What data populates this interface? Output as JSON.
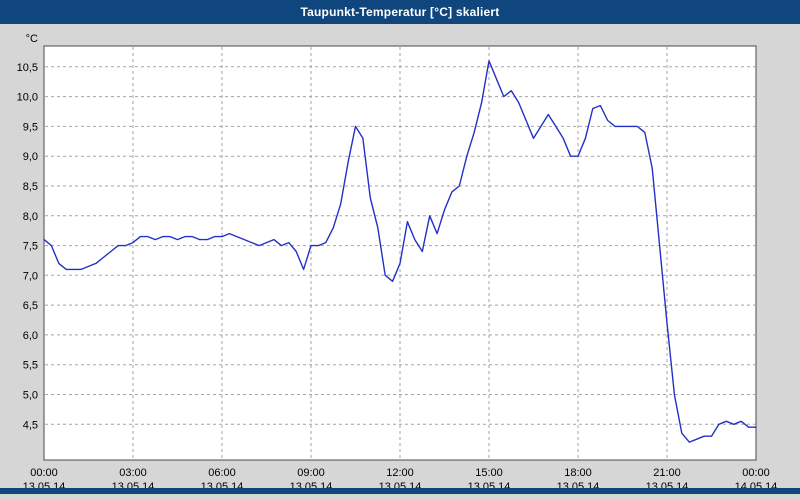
{
  "title": "Taupunkt-Temperatur [°C] skaliert",
  "accent_color": "#10467e",
  "line_color": "#2230c8",
  "unit_label": "°C",
  "chart_data": {
    "type": "line",
    "title": "Taupunkt-Temperatur [°C] skaliert",
    "xlabel": "",
    "ylabel": "°C",
    "xlim": [
      0,
      24
    ],
    "ylim": [
      3.9,
      10.85
    ],
    "grid": true,
    "legend": "none",
    "yticks": [
      {
        "v": 10.5,
        "label": "10,5"
      },
      {
        "v": 10.0,
        "label": "10,0"
      },
      {
        "v": 9.5,
        "label": "9,5"
      },
      {
        "v": 9.0,
        "label": "9,0"
      },
      {
        "v": 8.5,
        "label": "8,5"
      },
      {
        "v": 8.0,
        "label": "8,0"
      },
      {
        "v": 7.5,
        "label": "7,5"
      },
      {
        "v": 7.0,
        "label": "7,0"
      },
      {
        "v": 6.5,
        "label": "6,5"
      },
      {
        "v": 6.0,
        "label": "6,0"
      },
      {
        "v": 5.5,
        "label": "5,5"
      },
      {
        "v": 5.0,
        "label": "5,0"
      },
      {
        "v": 4.5,
        "label": "4,5"
      }
    ],
    "xticks": [
      {
        "h": 0,
        "time": "00:00",
        "date": "13.05.14"
      },
      {
        "h": 3,
        "time": "03:00",
        "date": "13.05.14"
      },
      {
        "h": 6,
        "time": "06:00",
        "date": "13.05.14"
      },
      {
        "h": 9,
        "time": "09:00",
        "date": "13.05.14"
      },
      {
        "h": 12,
        "time": "12:00",
        "date": "13.05.14"
      },
      {
        "h": 15,
        "time": "15:00",
        "date": "13.05.14"
      },
      {
        "h": 18,
        "time": "18:00",
        "date": "13.05.14"
      },
      {
        "h": 21,
        "time": "21:00",
        "date": "13.05.14"
      },
      {
        "h": 24,
        "time": "00:00",
        "date": "14.05.14"
      }
    ],
    "series": [
      {
        "name": "Taupunkt-Temperatur",
        "x": [
          0,
          0.25,
          0.5,
          0.75,
          1,
          1.25,
          1.5,
          1.75,
          2,
          2.25,
          2.5,
          2.75,
          3,
          3.25,
          3.5,
          3.75,
          4,
          4.25,
          4.5,
          4.75,
          5,
          5.25,
          5.5,
          5.75,
          6,
          6.25,
          6.5,
          6.75,
          7,
          7.25,
          7.5,
          7.75,
          8,
          8.25,
          8.5,
          8.75,
          9,
          9.25,
          9.5,
          9.75,
          10,
          10.25,
          10.5,
          10.75,
          11,
          11.25,
          11.5,
          11.75,
          12,
          12.25,
          12.5,
          12.75,
          13,
          13.25,
          13.5,
          13.75,
          14,
          14.25,
          14.5,
          14.75,
          15,
          15.25,
          15.5,
          15.75,
          16,
          16.25,
          16.5,
          16.75,
          17,
          17.25,
          17.5,
          17.75,
          18,
          18.25,
          18.5,
          18.75,
          19,
          19.25,
          19.5,
          19.75,
          20,
          20.25,
          20.5,
          20.75,
          21,
          21.25,
          21.5,
          21.75,
          22,
          22.25,
          22.5,
          22.75,
          23,
          23.25,
          23.5,
          23.75,
          24
        ],
        "values": [
          7.6,
          7.5,
          7.2,
          7.1,
          7.1,
          7.1,
          7.15,
          7.2,
          7.3,
          7.4,
          7.5,
          7.5,
          7.55,
          7.65,
          7.65,
          7.6,
          7.65,
          7.65,
          7.6,
          7.65,
          7.65,
          7.6,
          7.6,
          7.65,
          7.65,
          7.7,
          7.65,
          7.6,
          7.55,
          7.5,
          7.55,
          7.6,
          7.5,
          7.55,
          7.4,
          7.1,
          7.5,
          7.5,
          7.55,
          7.8,
          8.2,
          8.9,
          9.5,
          9.3,
          8.3,
          7.8,
          7.0,
          6.9,
          7.2,
          7.9,
          7.6,
          7.4,
          8.0,
          7.7,
          8.1,
          8.4,
          8.5,
          9.0,
          9.4,
          9.9,
          10.6,
          10.3,
          10.0,
          10.1,
          9.9,
          9.6,
          9.3,
          9.5,
          9.7,
          9.5,
          9.3,
          9.0,
          9.0,
          9.3,
          9.8,
          9.85,
          9.6,
          9.5,
          9.5,
          9.5,
          9.5,
          9.4,
          8.8,
          7.5,
          6.2,
          5.0,
          4.35,
          4.2,
          4.25,
          4.3,
          4.3,
          4.5,
          4.55,
          4.5,
          4.55,
          4.45,
          4.45
        ]
      }
    ]
  }
}
